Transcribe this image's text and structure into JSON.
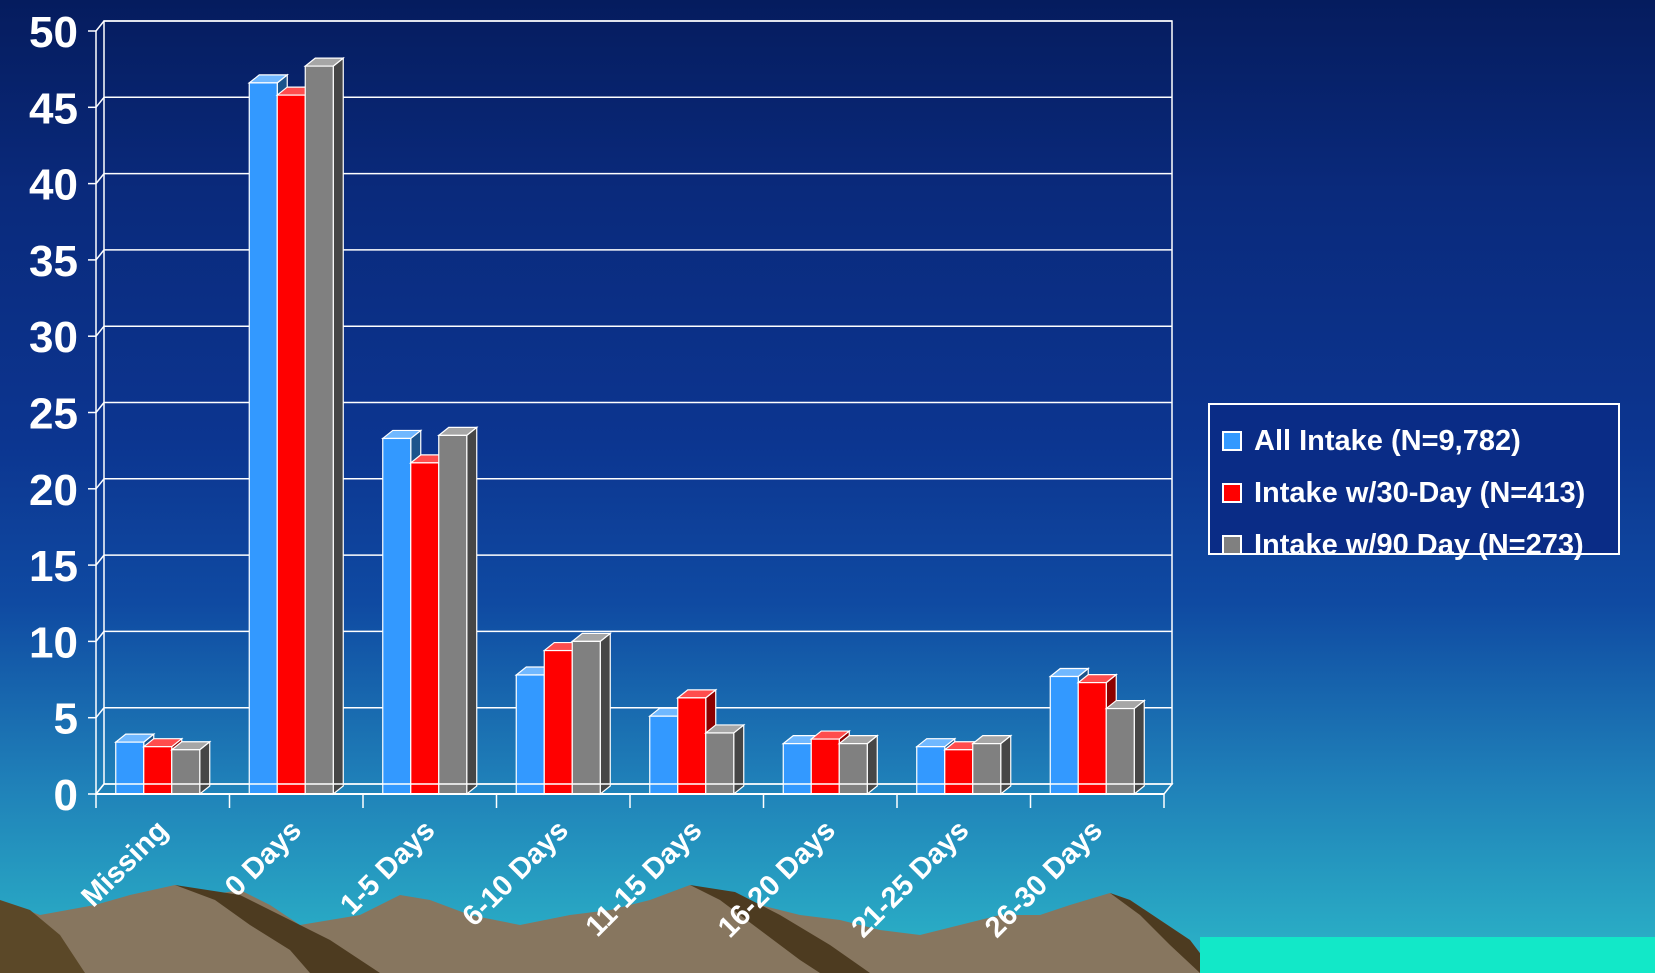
{
  "chart_data": {
    "type": "bar",
    "categories": [
      "Missing",
      "0 Days",
      "1-5 Days",
      "6-10 Days",
      "11-15 Days",
      "16-20 Days",
      "21-25 Days",
      "26-30 Days"
    ],
    "series": [
      {
        "name": "All Intake (N=9,782)",
        "color": "#3399ff",
        "values": [
          3.4,
          46.6,
          23.3,
          7.8,
          5.1,
          3.3,
          3.1,
          7.7
        ]
      },
      {
        "name": "Intake w/30-Day (N=413)",
        "color": "#ff0000",
        "values": [
          3.1,
          45.8,
          21.7,
          9.4,
          6.3,
          3.6,
          2.9,
          7.3
        ]
      },
      {
        "name": "Intake w/90 Day (N=273)",
        "color": "#808080",
        "values": [
          2.9,
          47.7,
          23.5,
          10.0,
          4.0,
          3.3,
          3.3,
          5.6
        ]
      }
    ],
    "yticks": [
      "0",
      "5",
      "10",
      "15",
      "20",
      "25",
      "30",
      "35",
      "40",
      "45",
      "50"
    ],
    "ylim": [
      0,
      50
    ],
    "grid": true,
    "legend_position": "right"
  }
}
